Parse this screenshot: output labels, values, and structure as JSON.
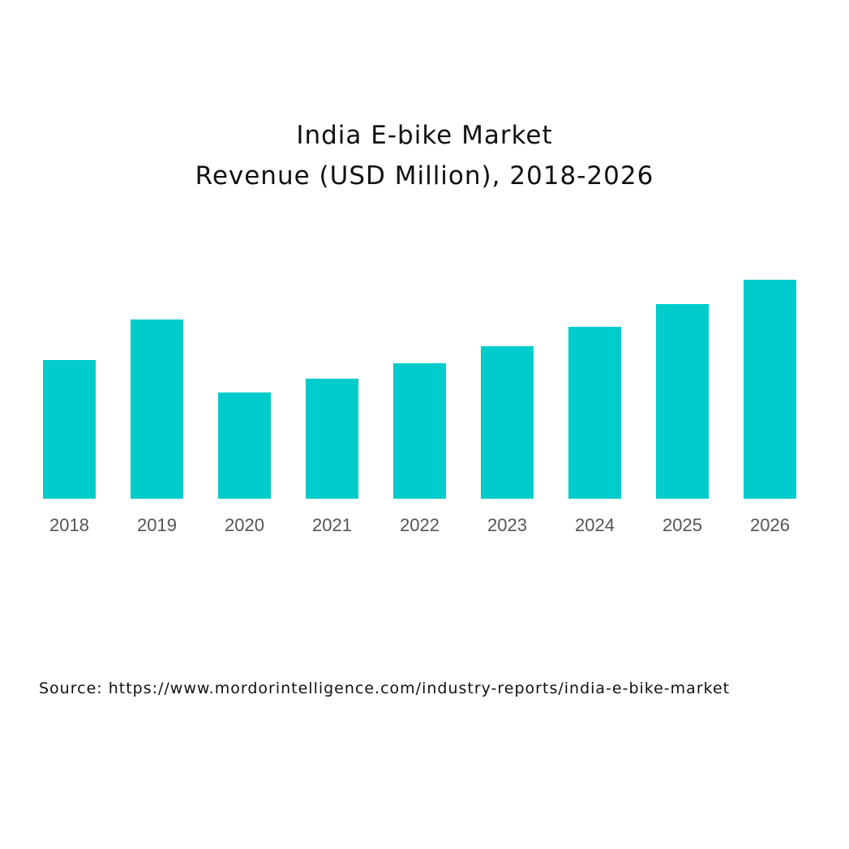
{
  "chart_data": {
    "type": "bar",
    "title": "India E-bike Market",
    "subtitle": "Revenue (USD Million), 2018-2026",
    "categories": [
      "2018",
      "2019",
      "2020",
      "2021",
      "2022",
      "2023",
      "2024",
      "2025",
      "2026"
    ],
    "values": [
      171,
      221,
      131,
      148,
      167,
      188,
      212,
      240,
      270
    ],
    "ylim": [
      0,
      300
    ],
    "grid": false,
    "legend": "none",
    "xlabel": "",
    "ylabel": "",
    "colors": {
      "bar": "#00cccc"
    }
  },
  "source": "Source: https://www.mordorintelligence.com/industry-reports/india-e-bike-market"
}
